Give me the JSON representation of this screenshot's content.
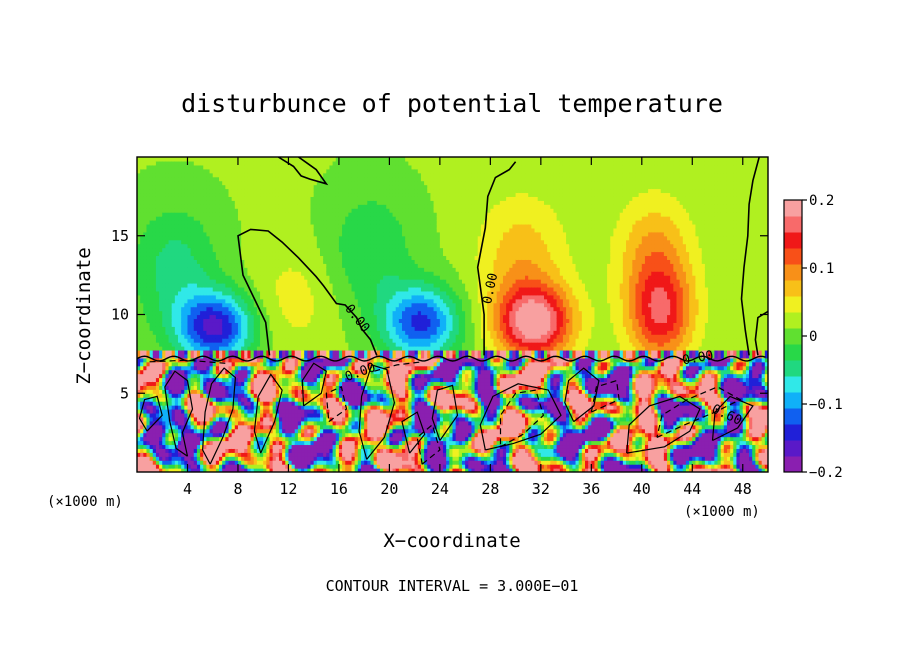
{
  "chart_data": {
    "type": "heatmap",
    "title": "disturbunce of potential temperature",
    "xlabel": "X−coordinate",
    "ylabel": "Z−coordinate",
    "x_unit_left": "(×1000 m)",
    "x_unit_right": "(×1000 m)",
    "xlim": [
      0,
      50
    ],
    "ylim": [
      0,
      20
    ],
    "x_ticks": [
      4,
      8,
      12,
      16,
      20,
      24,
      28,
      32,
      36,
      40,
      44,
      48
    ],
    "y_ticks": [
      5,
      10,
      15
    ],
    "colorbar": {
      "range": [
        -0.2,
        0.2
      ],
      "tick_values": [
        0.2,
        0.1,
        0,
        -0.1,
        -0.2
      ],
      "tick_labels": [
        "0.2",
        "0.1",
        "0",
        "−0.1",
        "−0.2"
      ],
      "colors": [
        "#8a1fb0",
        "#5a19c8",
        "#2020d8",
        "#1060f0",
        "#10b0f8",
        "#30e8e8",
        "#20d880",
        "#28d848",
        "#60e030",
        "#b0f020",
        "#f0f020",
        "#f8c018",
        "#f89018",
        "#f85018",
        "#f01818",
        "#f86a6a",
        "#f8a0a0"
      ]
    },
    "contour_labels": [
      "0.00",
      "0.00",
      "0.00",
      "0.00",
      "0.60"
    ],
    "footer": "CONTOUR INTERVAL = 3.000E−01",
    "blobs": [
      {
        "x": 6.2,
        "z": 9.2,
        "v": -0.17,
        "sx": 3.0,
        "sz": 2.2
      },
      {
        "x": 3.0,
        "z": 13.0,
        "v": -0.06,
        "sx": 3.5,
        "sz": 4.0
      },
      {
        "x": 22.5,
        "z": 9.5,
        "v": -0.15,
        "sx": 3.0,
        "sz": 2.3
      },
      {
        "x": 18.5,
        "z": 14.0,
        "v": -0.05,
        "sx": 3.5,
        "sz": 4.0
      },
      {
        "x": 12.5,
        "z": 11.0,
        "v": 0.03,
        "sx": 3.5,
        "sz": 3.5
      },
      {
        "x": 31.5,
        "z": 9.5,
        "v": 0.18,
        "sx": 3.0,
        "sz": 2.3
      },
      {
        "x": 30.5,
        "z": 13.5,
        "v": 0.06,
        "sx": 3.5,
        "sz": 4.0
      },
      {
        "x": 41.5,
        "z": 10.0,
        "v": 0.13,
        "sx": 2.6,
        "sz": 3.0
      },
      {
        "x": 41.0,
        "z": 14.0,
        "v": 0.07,
        "sx": 3.0,
        "sz": 3.5
      }
    ],
    "lower_layer_z": 7.2,
    "lower_layer_amp": 0.3,
    "contours": [
      [
        [
          10.5,
          7.4
        ],
        [
          10.2,
          9.5
        ],
        [
          8.4,
          12.5
        ],
        [
          8.0,
          15.0
        ],
        [
          9.0,
          15.4
        ],
        [
          10.4,
          15.3
        ],
        [
          11.5,
          14.6
        ],
        [
          12.8,
          13.6
        ],
        [
          14.2,
          12.4
        ],
        [
          14.8,
          11.8
        ],
        [
          15.8,
          10.7
        ],
        [
          16.5,
          10.6
        ],
        [
          17.4,
          9.8
        ],
        [
          17.8,
          9.1
        ],
        [
          18.5,
          8.4
        ],
        [
          19.0,
          7.4
        ]
      ],
      [
        [
          27.5,
          7.4
        ],
        [
          27.5,
          10.0
        ],
        [
          27.0,
          13.0
        ],
        [
          27.6,
          15.5
        ],
        [
          27.8,
          17.5
        ],
        [
          28.4,
          18.7
        ],
        [
          29.5,
          19.2
        ],
        [
          30.0,
          19.7
        ]
      ],
      [
        [
          11.2,
          20.0
        ],
        [
          12.4,
          19.4
        ],
        [
          13.0,
          18.8
        ],
        [
          13.7,
          18.6
        ],
        [
          15.0,
          18.3
        ],
        [
          14.2,
          19.2
        ],
        [
          13.5,
          19.6
        ],
        [
          12.8,
          20.0
        ]
      ],
      [
        [
          48.5,
          7.4
        ],
        [
          48.2,
          9.0
        ],
        [
          47.9,
          11.0
        ],
        [
          48.1,
          13.0
        ],
        [
          48.4,
          15.0
        ],
        [
          48.5,
          17.0
        ],
        [
          48.8,
          18.5
        ],
        [
          49.3,
          20.0
        ]
      ],
      [
        [
          49.2,
          7.4
        ],
        [
          49.0,
          8.4
        ],
        [
          49.2,
          9.8
        ],
        [
          50.0,
          10.2
        ]
      ]
    ],
    "lower_contours": [
      [
        [
          4.0,
          1.0
        ],
        [
          3.6,
          2.5
        ],
        [
          4.4,
          4.0
        ],
        [
          4.0,
          5.8
        ],
        [
          3.0,
          6.4
        ],
        [
          2.2,
          5.4
        ],
        [
          2.6,
          3.2
        ],
        [
          3.1,
          1.5
        ],
        [
          4.0,
          1.0
        ]
      ],
      [
        [
          5.8,
          0.5
        ],
        [
          6.8,
          2.2
        ],
        [
          7.6,
          4.0
        ],
        [
          7.8,
          6.0
        ],
        [
          6.9,
          6.6
        ],
        [
          5.9,
          5.6
        ],
        [
          5.4,
          3.8
        ],
        [
          5.2,
          1.4
        ],
        [
          5.8,
          0.5
        ]
      ],
      [
        [
          0.8,
          2.6
        ],
        [
          2.0,
          3.6
        ],
        [
          1.6,
          4.8
        ],
        [
          0.6,
          4.6
        ],
        [
          0.2,
          3.4
        ],
        [
          0.8,
          2.6
        ]
      ],
      [
        [
          9.8,
          1.2
        ],
        [
          10.9,
          3.2
        ],
        [
          11.5,
          5.2
        ],
        [
          10.6,
          6.2
        ],
        [
          9.6,
          4.8
        ],
        [
          9.3,
          2.6
        ],
        [
          9.8,
          1.2
        ]
      ],
      [
        [
          18.2,
          0.8
        ],
        [
          19.6,
          2.2
        ],
        [
          20.4,
          4.4
        ],
        [
          19.8,
          6.5
        ],
        [
          18.6,
          6.8
        ],
        [
          17.8,
          4.8
        ],
        [
          17.6,
          2.6
        ],
        [
          18.2,
          0.8
        ]
      ],
      [
        [
          21.6,
          1.2
        ],
        [
          22.8,
          2.4
        ],
        [
          22.2,
          3.8
        ],
        [
          21.0,
          3.2
        ],
        [
          21.6,
          1.2
        ]
      ],
      [
        [
          24.0,
          2.0
        ],
        [
          25.4,
          3.6
        ],
        [
          25.0,
          5.5
        ],
        [
          23.8,
          5.2
        ],
        [
          23.4,
          3.4
        ],
        [
          24.0,
          2.0
        ]
      ],
      [
        [
          27.6,
          1.4
        ],
        [
          29.8,
          1.8
        ],
        [
          32.0,
          2.4
        ],
        [
          33.6,
          3.6
        ],
        [
          32.6,
          5.2
        ],
        [
          30.2,
          5.6
        ],
        [
          28.2,
          4.8
        ],
        [
          27.2,
          3.0
        ],
        [
          27.6,
          1.4
        ]
      ],
      [
        [
          34.6,
          3.2
        ],
        [
          36.2,
          4.2
        ],
        [
          36.6,
          5.8
        ],
        [
          35.4,
          6.6
        ],
        [
          34.2,
          5.8
        ],
        [
          33.9,
          4.4
        ],
        [
          34.6,
          3.2
        ]
      ],
      [
        [
          38.8,
          1.2
        ],
        [
          41.8,
          1.6
        ],
        [
          43.8,
          2.6
        ],
        [
          44.6,
          4.0
        ],
        [
          43.0,
          4.8
        ],
        [
          40.6,
          4.2
        ],
        [
          39.0,
          3.0
        ],
        [
          38.8,
          1.2
        ]
      ],
      [
        [
          45.6,
          2.0
        ],
        [
          47.6,
          2.8
        ],
        [
          48.8,
          4.2
        ],
        [
          47.0,
          4.8
        ],
        [
          45.8,
          3.8
        ],
        [
          45.6,
          2.0
        ]
      ],
      [
        [
          13.2,
          4.2
        ],
        [
          14.6,
          5.0
        ],
        [
          15.0,
          6.4
        ],
        [
          14.0,
          6.9
        ],
        [
          13.1,
          5.8
        ],
        [
          13.2,
          4.2
        ]
      ]
    ],
    "dashed_contours": [
      [
        [
          28.8,
          1.6
        ],
        [
          30.6,
          2.4
        ],
        [
          32.2,
          3.6
        ],
        [
          31.6,
          5.2
        ],
        [
          30.0,
          5.0
        ],
        [
          28.8,
          3.6
        ],
        [
          28.8,
          1.6
        ]
      ],
      [
        [
          22.6,
          0.5
        ],
        [
          24.0,
          1.4
        ],
        [
          23.4,
          3.0
        ],
        [
          22.2,
          2.2
        ],
        [
          22.6,
          0.5
        ]
      ],
      [
        [
          15.2,
          3.2
        ],
        [
          16.6,
          4.0
        ],
        [
          16.2,
          5.4
        ],
        [
          15.0,
          5.0
        ],
        [
          15.2,
          3.2
        ]
      ],
      [
        [
          41.2,
          2.2
        ],
        [
          43.4,
          3.0
        ],
        [
          45.8,
          3.8
        ],
        [
          47.8,
          4.6
        ],
        [
          46.0,
          5.4
        ],
        [
          43.6,
          4.6
        ],
        [
          41.6,
          3.6
        ],
        [
          41.2,
          2.2
        ]
      ],
      [
        [
          18.8,
          6.4
        ],
        [
          20.6,
          6.8
        ],
        [
          22.6,
          7.0
        ]
      ],
      [
        [
          1.0,
          7.0
        ],
        [
          4.0,
          7.1
        ],
        [
          7.0,
          6.9
        ]
      ],
      [
        [
          36.0,
          3.8
        ],
        [
          38.2,
          4.6
        ],
        [
          38.0,
          5.8
        ],
        [
          36.4,
          5.4
        ],
        [
          36.0,
          3.8
        ]
      ]
    ]
  }
}
